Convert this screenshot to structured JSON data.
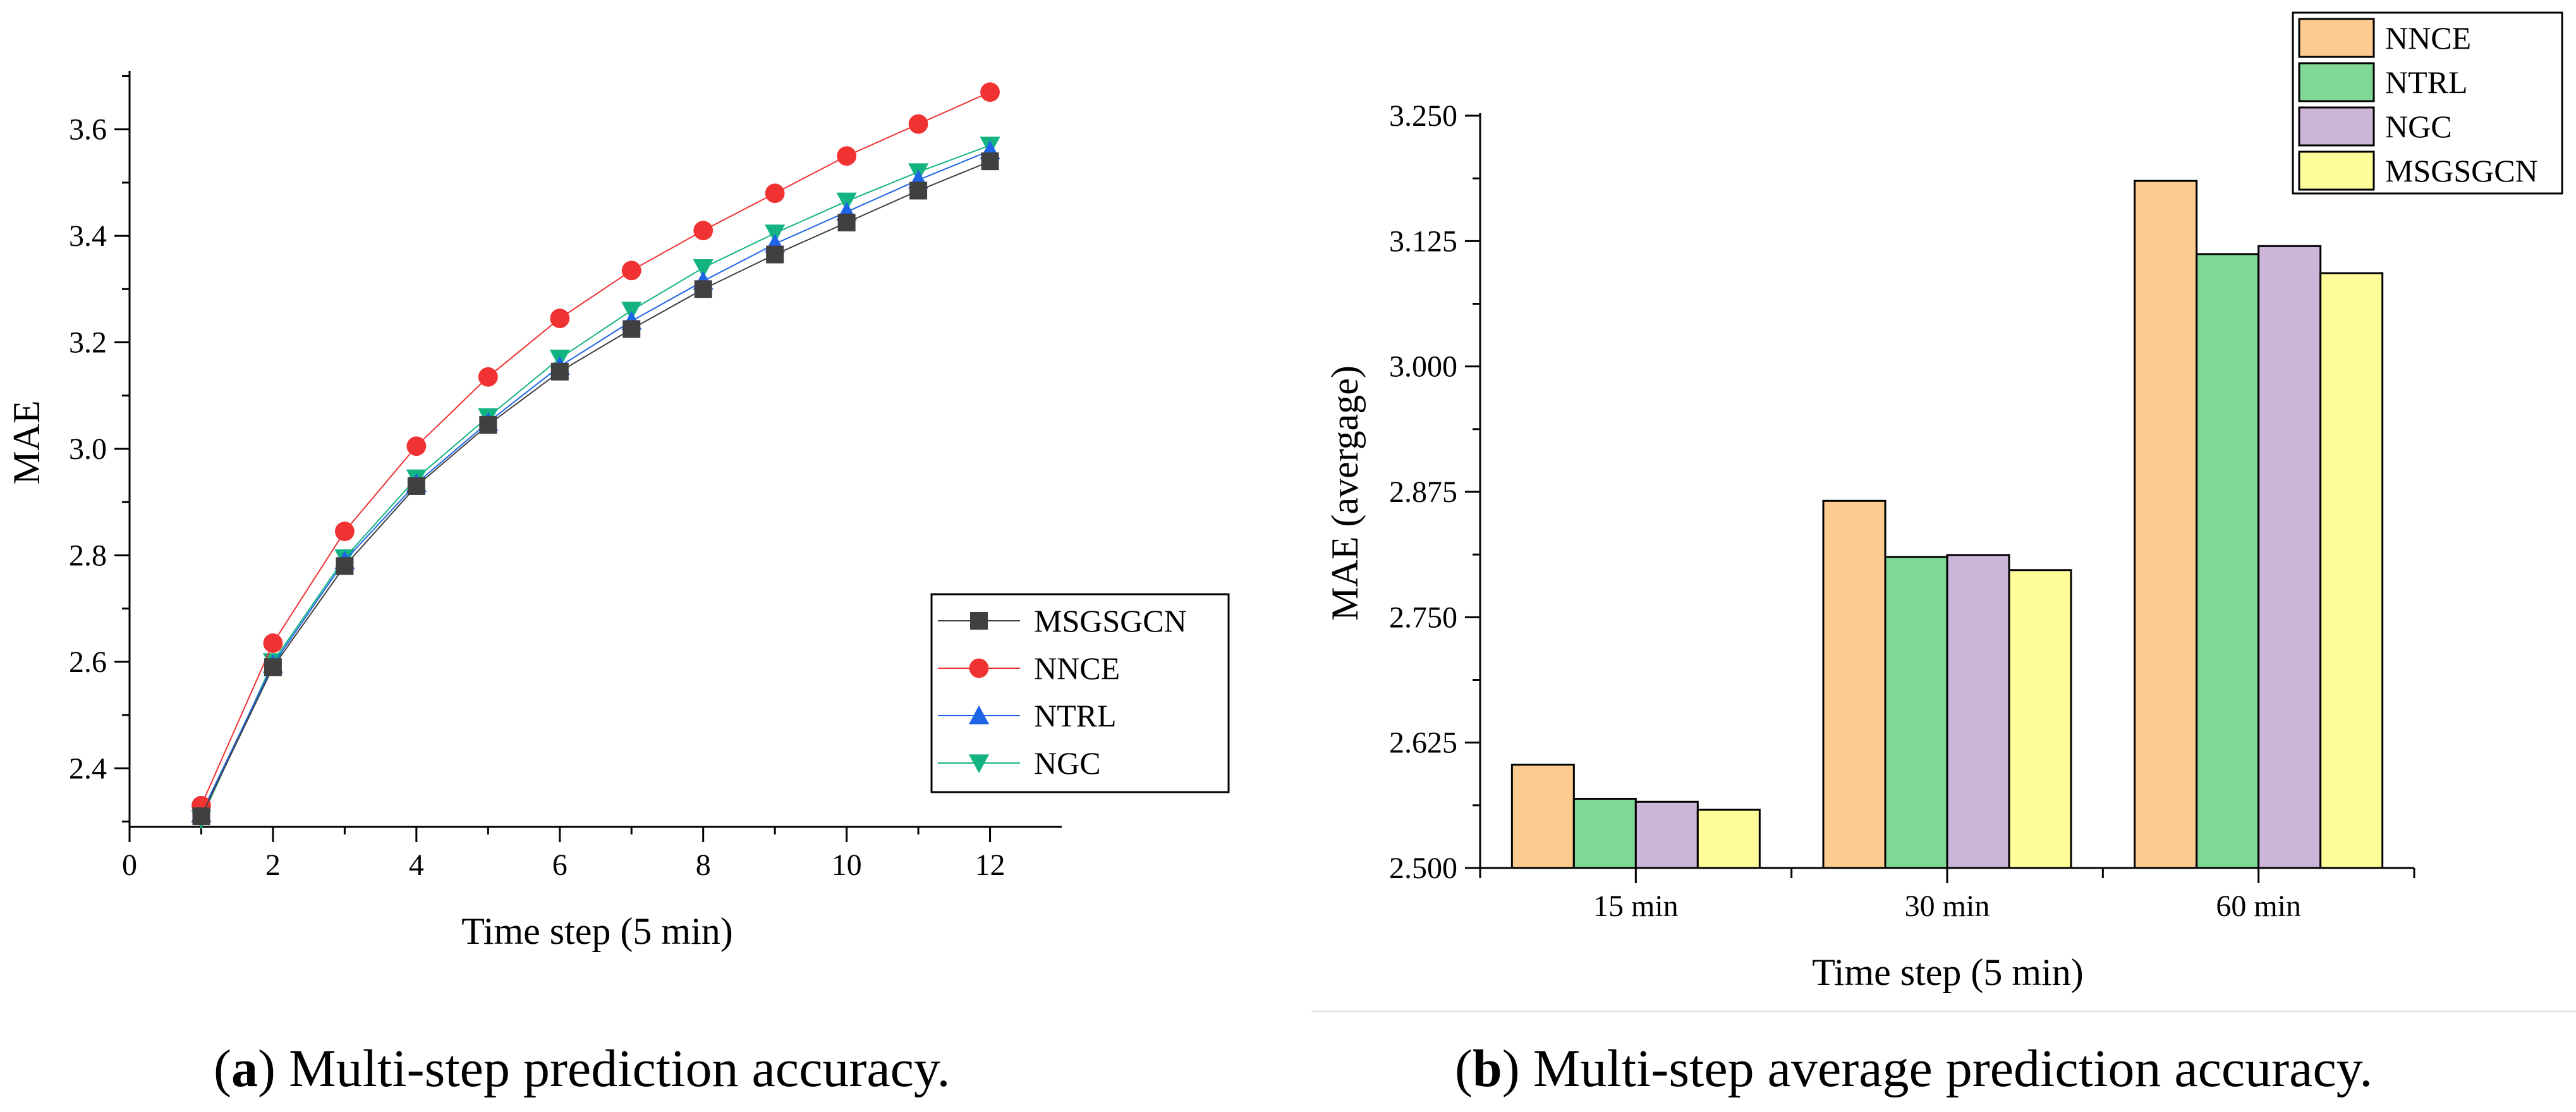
{
  "colors": {
    "MSGSGCN_line": "#404040",
    "NNCE_line": "#f03232",
    "NTRL_line": "#1e64e6",
    "NGC_line": "#14b482",
    "bar_NNCE": "#fdca8f",
    "bar_NTRL": "#7fd896",
    "bar_NGC": "#cdb5d9",
    "bar_MSGSGCN": "#fffc9a"
  },
  "captions": {
    "a": {
      "label": "a",
      "text": "Multi-step prediction accuracy."
    },
    "b": {
      "label": "b",
      "text": "Multi-step average prediction accuracy."
    }
  },
  "chart_data": [
    {
      "id": "a",
      "type": "line",
      "title": "",
      "xlabel": "Time step (5 min)",
      "ylabel": "MAE",
      "xlim": [
        0,
        13
      ],
      "ylim": [
        2.29,
        3.71
      ],
      "xticks": [
        "0",
        "2",
        "4",
        "6",
        "8",
        "10",
        "12"
      ],
      "yticks": [
        "2.4",
        "2.6",
        "2.8",
        "3.0",
        "3.2",
        "3.4",
        "3.6"
      ],
      "legend_position": "bottom-right",
      "grid": false,
      "x": [
        1,
        2,
        3,
        4,
        5,
        6,
        7,
        8,
        9,
        10,
        11,
        12
      ],
      "series": [
        {
          "name": "MSGSGCN",
          "marker": "square",
          "values": [
            2.31,
            2.59,
            2.78,
            2.93,
            3.045,
            3.145,
            3.225,
            3.3,
            3.365,
            3.425,
            3.485,
            3.54
          ]
        },
        {
          "name": "NNCE",
          "marker": "circle",
          "values": [
            2.33,
            2.635,
            2.845,
            3.005,
            3.135,
            3.245,
            3.335,
            3.41,
            3.48,
            3.55,
            3.61,
            3.67
          ]
        },
        {
          "name": "NTRL",
          "marker": "triangle-up",
          "values": [
            2.315,
            2.595,
            2.79,
            2.935,
            3.05,
            3.155,
            3.24,
            3.315,
            3.385,
            3.445,
            3.505,
            3.56
          ]
        },
        {
          "name": "NGC",
          "marker": "triangle-down",
          "values": [
            2.305,
            2.6,
            2.795,
            2.945,
            3.06,
            3.17,
            3.26,
            3.34,
            3.405,
            3.465,
            3.52,
            3.57
          ]
        }
      ]
    },
    {
      "id": "b",
      "type": "bar",
      "title": "",
      "xlabel": "Time step (5 min)",
      "ylabel": "MAE (avergage)",
      "ylim": [
        2.5,
        3.25
      ],
      "yticks": [
        "2.500",
        "2.625",
        "2.750",
        "2.875",
        "3.000",
        "3.125",
        "3.250"
      ],
      "legend_position": "top-right",
      "grid": false,
      "categories": [
        "15 min",
        "30 min",
        "60 min"
      ],
      "series": [
        {
          "name": "NNCE",
          "values": [
            2.603,
            2.866,
            3.185
          ]
        },
        {
          "name": "NTRL",
          "values": [
            2.569,
            2.81,
            3.112
          ]
        },
        {
          "name": "NGC",
          "values": [
            2.566,
            2.812,
            3.12
          ]
        },
        {
          "name": "MSGSGCN",
          "values": [
            2.558,
            2.797,
            3.093
          ]
        }
      ]
    }
  ]
}
